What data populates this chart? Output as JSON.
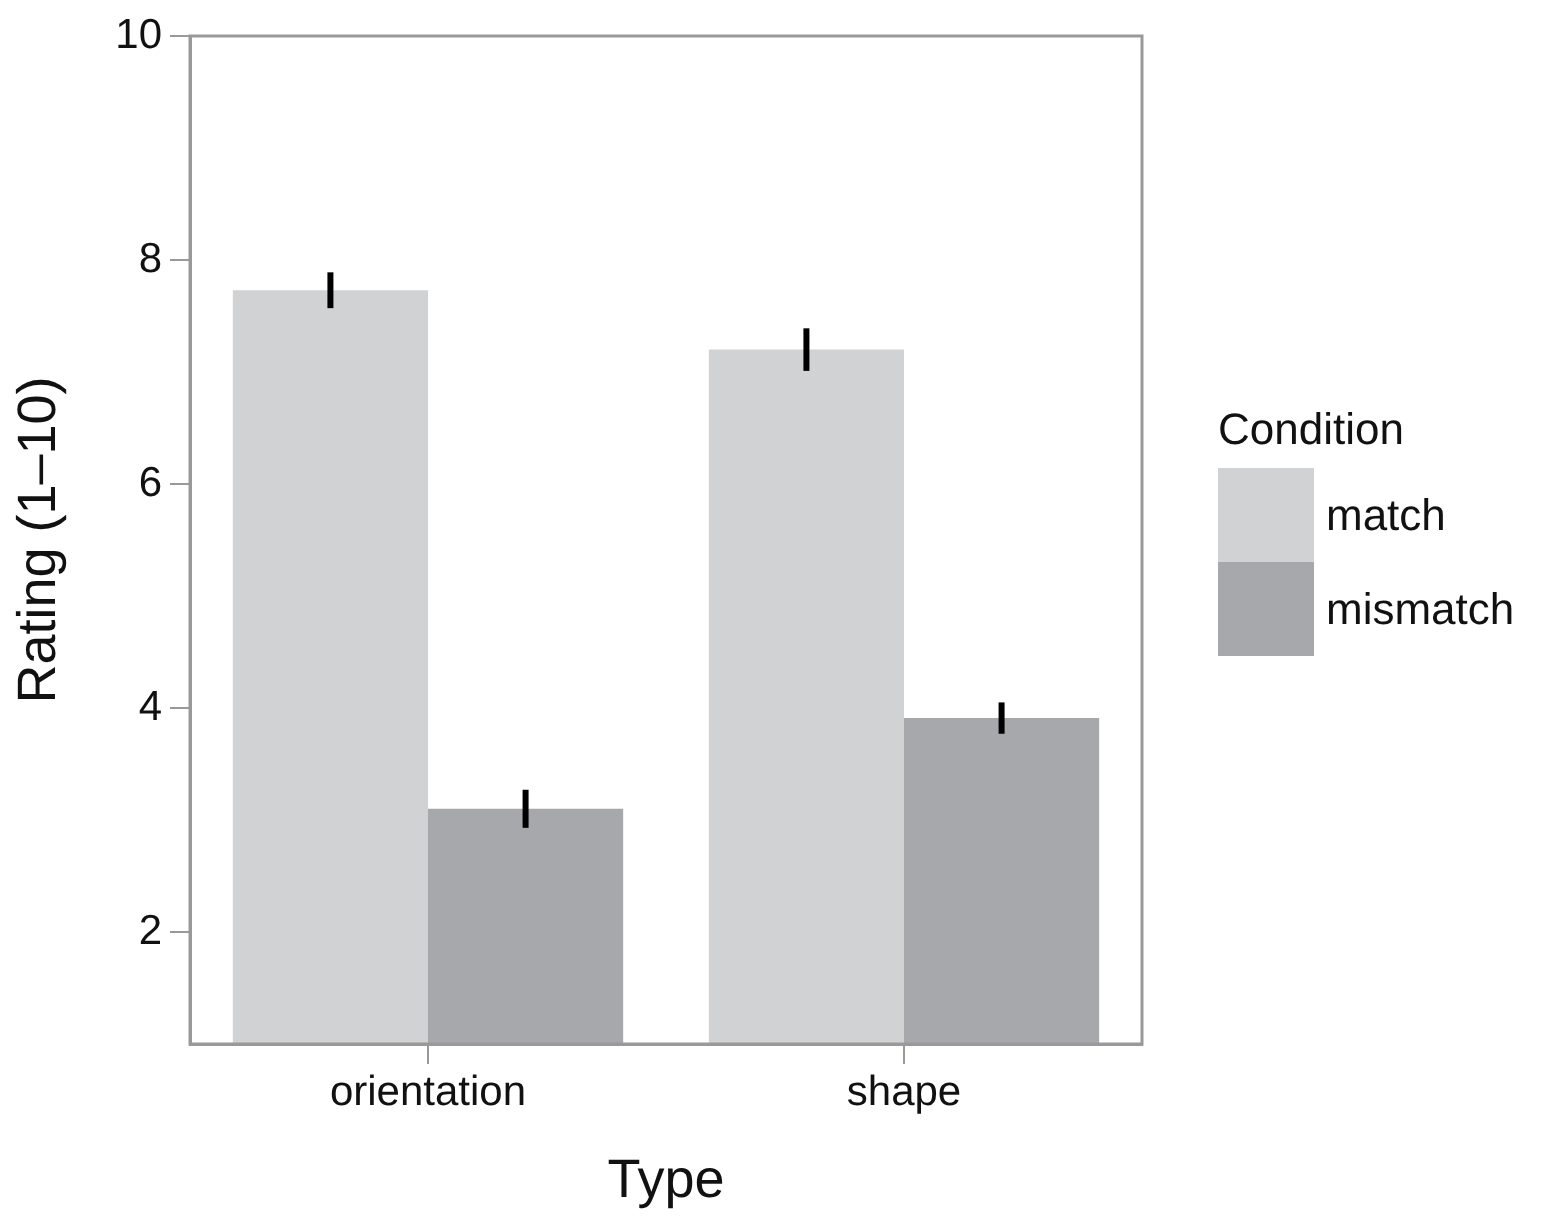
{
  "chart_data": {
    "type": "bar",
    "xlabel": "Type",
    "ylabel": "Rating (1–10)",
    "legend_title": "Condition",
    "legend": "right",
    "grid": false,
    "categories": [
      "orientation",
      "shape"
    ],
    "series": [
      {
        "name": "match",
        "color": "#d1d2d4",
        "values": [
          7.73,
          7.2
        ],
        "errors": [
          0.16,
          0.19
        ]
      },
      {
        "name": "mismatch",
        "color": "#a7a8ab",
        "values": [
          3.1,
          3.91
        ],
        "errors": [
          0.17,
          0.14
        ]
      }
    ],
    "ylim": [
      1,
      10
    ],
    "yticks": [
      2,
      4,
      6,
      8,
      10
    ]
  }
}
